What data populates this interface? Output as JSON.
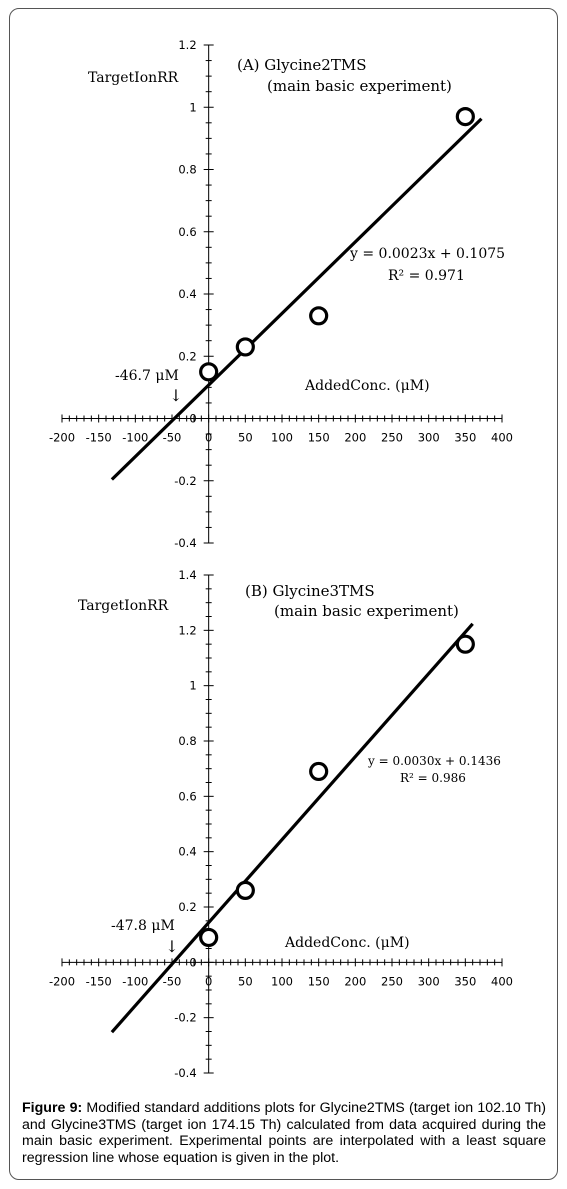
{
  "chart_data": [
    {
      "type": "scatter",
      "panel_title": "(A) Glycine2TMS",
      "panel_subtitle": "(main basic experiment)",
      "ylabel": "TargetIonRR",
      "xlabel": "AddedConc. (μM)",
      "xlim": [
        -200,
        400
      ],
      "ylim": [
        -0.4,
        1.2
      ],
      "x_ticks": [
        "-200",
        "-150",
        "-100",
        "-50",
        "0",
        "50",
        "100",
        "150",
        "200",
        "250",
        "300",
        "350",
        "400"
      ],
      "y_ticks": [
        "-0.4",
        "-0.2",
        "0",
        "0.2",
        "0.4",
        "0.6",
        "0.8",
        "1",
        "1.2"
      ],
      "points": [
        {
          "x": 0,
          "y": 0.15
        },
        {
          "x": 50,
          "y": 0.23
        },
        {
          "x": 150,
          "y": 0.33
        },
        {
          "x": 350,
          "y": 0.97
        }
      ],
      "fit": {
        "slope": 0.0023,
        "intercept": 0.1075,
        "x_range": [
          -132,
          372
        ]
      },
      "equation": "y = 0.0023x + 0.1075",
      "r2": "R² = 0.971",
      "x_intercept_label": "-46.7 μM",
      "arrow": "↓"
    },
    {
      "type": "scatter",
      "panel_title": "(B) Glycine3TMS",
      "panel_subtitle": "(main basic experiment)",
      "ylabel": "TargetIonRR",
      "xlabel": "AddedConc. (μM)",
      "xlim": [
        -200,
        400
      ],
      "ylim": [
        -0.4,
        1.4
      ],
      "x_ticks": [
        "-200",
        "-150",
        "-100",
        "-50",
        "0",
        "50",
        "100",
        "150",
        "200",
        "250",
        "300",
        "350",
        "400"
      ],
      "y_ticks": [
        "-0.4",
        "-0.2",
        "0",
        "0.2",
        "0.4",
        "0.6",
        "0.8",
        "1",
        "1.2",
        "1.4"
      ],
      "points": [
        {
          "x": 0,
          "y": 0.09
        },
        {
          "x": 50,
          "y": 0.26
        },
        {
          "x": 150,
          "y": 0.69
        },
        {
          "x": 350,
          "y": 1.15
        }
      ],
      "fit": {
        "slope": 0.003,
        "intercept": 0.1436,
        "x_range": [
          -132,
          360
        ]
      },
      "equation": "y = 0.0030x + 0.1436",
      "r2": "R² = 0.986",
      "x_intercept_label": "-47.8 μM",
      "arrow": "↓"
    }
  ],
  "caption": {
    "label": "Figure 9:",
    "text": " Modified standard additions plots for Glycine2TMS (target ion 102.10 Th) and Glycine3TMS (target ion 174.15 Th) calculated from data acquired during the main basic experiment. Experimental points are interpolated with a least square regression line whose equation is given in the plot."
  }
}
